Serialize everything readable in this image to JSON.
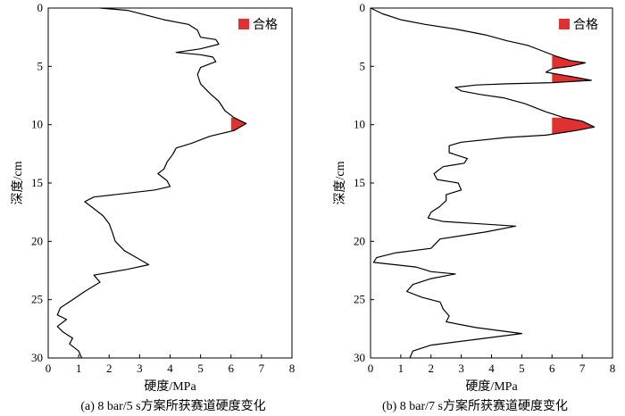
{
  "chart_data": [
    {
      "type": "line",
      "panel": "a",
      "caption": "(a) 8 bar/5 s方案所获赛道硬度变化",
      "xlabel": "硬度/MPa",
      "ylabel": "深度/cm",
      "xlim": [
        0,
        8
      ],
      "ylim": [
        0,
        30
      ],
      "y_inverted": true,
      "xticks": [
        0,
        1,
        2,
        3,
        4,
        5,
        6,
        7,
        8
      ],
      "yticks": [
        0,
        5,
        10,
        15,
        20,
        25,
        30
      ],
      "legend": {
        "label": "合格",
        "color": "#e03030",
        "position": "top-right"
      },
      "threshold": 6,
      "series": [
        {
          "points": [
            [
              1.7,
              0.0
            ],
            [
              2.6,
              0.2
            ],
            [
              3.2,
              0.6
            ],
            [
              3.8,
              1.0
            ],
            [
              4.6,
              1.4
            ],
            [
              4.9,
              1.9
            ],
            [
              5.0,
              2.5
            ],
            [
              5.5,
              2.7
            ],
            [
              5.6,
              3.1
            ],
            [
              5.0,
              3.5
            ],
            [
              4.2,
              3.8
            ],
            [
              5.0,
              4.0
            ],
            [
              5.4,
              4.2
            ],
            [
              5.5,
              4.6
            ],
            [
              5.0,
              5.1
            ],
            [
              4.9,
              5.7
            ],
            [
              5.0,
              6.5
            ],
            [
              5.3,
              7.3
            ],
            [
              5.6,
              8.0
            ],
            [
              5.8,
              8.8
            ],
            [
              6.1,
              9.4
            ],
            [
              6.5,
              9.9
            ],
            [
              6.1,
              10.5
            ],
            [
              5.3,
              11.0
            ],
            [
              4.7,
              11.6
            ],
            [
              4.2,
              12.0
            ],
            [
              4.1,
              12.5
            ],
            [
              3.9,
              13.2
            ],
            [
              3.8,
              13.8
            ],
            [
              3.6,
              14.2
            ],
            [
              3.9,
              14.8
            ],
            [
              4.0,
              15.3
            ],
            [
              3.5,
              15.6
            ],
            [
              2.5,
              15.9
            ],
            [
              1.5,
              16.2
            ],
            [
              1.2,
              16.6
            ],
            [
              1.4,
              17.0
            ],
            [
              1.8,
              17.8
            ],
            [
              2.0,
              18.5
            ],
            [
              2.1,
              19.2
            ],
            [
              2.2,
              20.0
            ],
            [
              2.5,
              20.8
            ],
            [
              2.9,
              21.4
            ],
            [
              3.3,
              22.0
            ],
            [
              2.6,
              22.4
            ],
            [
              1.5,
              22.9
            ],
            [
              1.7,
              23.5
            ],
            [
              1.2,
              24.3
            ],
            [
              0.8,
              25.0
            ],
            [
              0.4,
              25.7
            ],
            [
              0.3,
              26.3
            ],
            [
              0.6,
              26.7
            ],
            [
              0.3,
              27.3
            ],
            [
              0.5,
              27.8
            ],
            [
              0.8,
              28.3
            ],
            [
              0.7,
              28.8
            ],
            [
              1.0,
              29.4
            ],
            [
              1.1,
              30.0
            ]
          ]
        }
      ],
      "qualified_regions": [
        {
          "y_from": 9.4,
          "y_to": 10.5
        }
      ]
    },
    {
      "type": "line",
      "panel": "b",
      "caption": "(b) 8 bar/7 s方案所获赛道硬度变化",
      "xlabel": "硬度/MPa",
      "ylabel": "深度/cm",
      "xlim": [
        0,
        8
      ],
      "ylim": [
        0,
        30
      ],
      "y_inverted": true,
      "xticks": [
        0,
        1,
        2,
        3,
        4,
        5,
        6,
        7,
        8
      ],
      "yticks": [
        0,
        5,
        10,
        15,
        20,
        25,
        30
      ],
      "legend": {
        "label": "合格",
        "color": "#e03030",
        "position": "top-right"
      },
      "threshold": 6,
      "series": [
        {
          "points": [
            [
              0.0,
              0.0
            ],
            [
              0.4,
              0.5
            ],
            [
              1.0,
              1.0
            ],
            [
              1.8,
              1.4
            ],
            [
              2.8,
              1.8
            ],
            [
              3.8,
              2.3
            ],
            [
              4.5,
              2.8
            ],
            [
              5.2,
              3.2
            ],
            [
              5.6,
              3.6
            ],
            [
              6.1,
              4.1
            ],
            [
              6.6,
              4.5
            ],
            [
              7.1,
              4.7
            ],
            [
              6.6,
              5.0
            ],
            [
              6.0,
              5.2
            ],
            [
              5.8,
              5.5
            ],
            [
              6.7,
              5.9
            ],
            [
              7.3,
              6.2
            ],
            [
              6.0,
              6.4
            ],
            [
              4.5,
              6.5
            ],
            [
              3.5,
              6.6
            ],
            [
              2.8,
              6.8
            ],
            [
              3.0,
              7.1
            ],
            [
              3.6,
              7.4
            ],
            [
              4.4,
              7.7
            ],
            [
              5.1,
              8.2
            ],
            [
              5.8,
              8.9
            ],
            [
              6.4,
              9.4
            ],
            [
              7.0,
              9.7
            ],
            [
              7.4,
              10.2
            ],
            [
              6.8,
              10.5
            ],
            [
              5.8,
              10.9
            ],
            [
              4.5,
              11.1
            ],
            [
              3.0,
              11.5
            ],
            [
              2.6,
              11.8
            ],
            [
              2.6,
              12.4
            ],
            [
              3.2,
              12.9
            ],
            [
              3.1,
              13.3
            ],
            [
              2.4,
              13.6
            ],
            [
              2.1,
              14.2
            ],
            [
              2.2,
              14.7
            ],
            [
              2.9,
              15.0
            ],
            [
              3.0,
              15.6
            ],
            [
              2.5,
              16.0
            ],
            [
              2.5,
              16.5
            ],
            [
              2.3,
              17.0
            ],
            [
              2.0,
              17.5
            ],
            [
              1.9,
              18.0
            ],
            [
              2.4,
              18.3
            ],
            [
              3.6,
              18.5
            ],
            [
              4.8,
              18.7
            ],
            [
              3.8,
              19.2
            ],
            [
              2.3,
              19.8
            ],
            [
              2.0,
              20.6
            ],
            [
              0.8,
              21.0
            ],
            [
              0.2,
              21.4
            ],
            [
              0.1,
              21.8
            ],
            [
              0.8,
              22.0
            ],
            [
              1.5,
              22.2
            ],
            [
              2.0,
              22.6
            ],
            [
              2.8,
              22.8
            ],
            [
              2.0,
              23.2
            ],
            [
              1.4,
              23.7
            ],
            [
              1.2,
              24.3
            ],
            [
              1.7,
              24.8
            ],
            [
              2.3,
              25.2
            ],
            [
              2.4,
              25.8
            ],
            [
              2.6,
              26.4
            ],
            [
              2.5,
              26.9
            ],
            [
              3.5,
              27.4
            ],
            [
              5.0,
              27.9
            ],
            [
              3.5,
              28.4
            ],
            [
              2.0,
              28.9
            ],
            [
              1.4,
              29.4
            ],
            [
              1.3,
              30.0
            ]
          ]
        }
      ],
      "qualified_regions": [
        {
          "y_from": 4.1,
          "y_to": 5.2
        },
        {
          "y_from": 5.5,
          "y_to": 6.4
        },
        {
          "y_from": 9.4,
          "y_to": 10.9
        }
      ]
    }
  ]
}
